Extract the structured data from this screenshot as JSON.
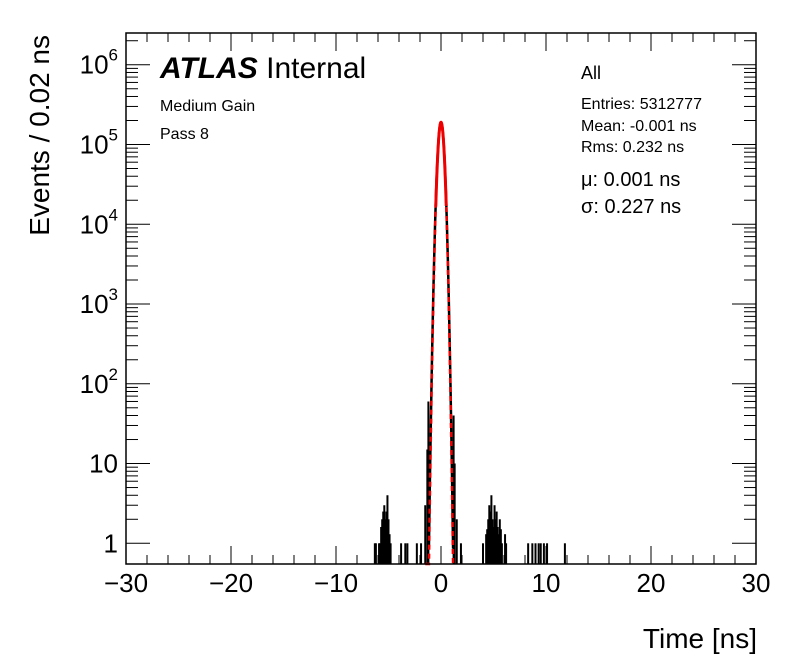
{
  "labels": {
    "experiment": "ATLAS",
    "status": "Internal",
    "gain": "Medium Gain",
    "pass": "Pass 8",
    "selection": "All",
    "entries": "Entries: 5312777",
    "mean": "Mean: -0.001 ns",
    "rms": "Rms: 0.232 ns",
    "fit_mu": "μ: 0.001 ns",
    "fit_sigma": "σ: 0.227 ns"
  },
  "chart_data": {
    "type": "histogram",
    "xlabel": "Time [ns]",
    "ylabel": "Events / 0.02 ns",
    "xlim": [
      -30,
      30
    ],
    "ylim": [
      0.55,
      2500000
    ],
    "yscale": "log",
    "x_ticks": [
      -30,
      -20,
      -10,
      0,
      10,
      20,
      30
    ],
    "x_tick_labels": [
      "−30",
      "−20",
      "−10",
      "0",
      "10",
      "20",
      "30"
    ],
    "y_ticks": [
      1,
      10,
      100,
      1000,
      10000,
      100000,
      1000000
    ],
    "y_tick_labels": [
      "1",
      "10",
      "10^2",
      "10^3",
      "10^4",
      "10^5",
      "10^6"
    ],
    "bin_width": 0.02,
    "series": [
      {
        "kind": "data",
        "color": "#000000",
        "bins": [
          {
            "x": -6.3,
            "y": 1
          },
          {
            "x": -6.2,
            "y": 1
          },
          {
            "x": -5.9,
            "y": 1
          },
          {
            "x": -5.8,
            "y": 1
          },
          {
            "x": -5.7,
            "y": 1.6
          },
          {
            "x": -5.6,
            "y": 2
          },
          {
            "x": -5.5,
            "y": 2.5
          },
          {
            "x": -5.4,
            "y": 3
          },
          {
            "x": -5.3,
            "y": 2
          },
          {
            "x": -5.2,
            "y": 2.5
          },
          {
            "x": -5.1,
            "y": 4
          },
          {
            "x": -5.0,
            "y": 2
          },
          {
            "x": -4.9,
            "y": 1.3
          },
          {
            "x": -4.8,
            "y": 1
          },
          {
            "x": -3.8,
            "y": 1
          },
          {
            "x": -3.4,
            "y": 1
          },
          {
            "x": -3.2,
            "y": 1
          },
          {
            "x": -2.3,
            "y": 1
          },
          {
            "x": -1.9,
            "y": 1
          },
          {
            "x": -1.5,
            "y": 3
          },
          {
            "x": -1.3,
            "y": 15
          },
          {
            "x": -1.2,
            "y": 60
          },
          {
            "x": 1.2,
            "y": 40
          },
          {
            "x": 1.3,
            "y": 10
          },
          {
            "x": 1.5,
            "y": 2
          },
          {
            "x": 1.9,
            "y": 1
          },
          {
            "x": 4.0,
            "y": 1
          },
          {
            "x": 4.3,
            "y": 1.3
          },
          {
            "x": 4.4,
            "y": 1.5
          },
          {
            "x": 4.5,
            "y": 2
          },
          {
            "x": 4.6,
            "y": 3
          },
          {
            "x": 4.7,
            "y": 2.5
          },
          {
            "x": 4.8,
            "y": 4
          },
          {
            "x": 4.9,
            "y": 2
          },
          {
            "x": 5.0,
            "y": 1.6
          },
          {
            "x": 5.1,
            "y": 3
          },
          {
            "x": 5.2,
            "y": 2
          },
          {
            "x": 5.3,
            "y": 2.5
          },
          {
            "x": 5.4,
            "y": 1.6
          },
          {
            "x": 5.5,
            "y": 1.3
          },
          {
            "x": 5.6,
            "y": 2
          },
          {
            "x": 5.7,
            "y": 1.5
          },
          {
            "x": 5.8,
            "y": 1
          },
          {
            "x": 6.1,
            "y": 1.3
          },
          {
            "x": 6.2,
            "y": 1
          },
          {
            "x": 8.3,
            "y": 1
          },
          {
            "x": 8.7,
            "y": 1
          },
          {
            "x": 9.0,
            "y": 1
          },
          {
            "x": 9.3,
            "y": 1
          },
          {
            "x": 9.5,
            "y": 1
          },
          {
            "x": 9.8,
            "y": 1
          },
          {
            "x": 10.1,
            "y": 1
          },
          {
            "x": 11.8,
            "y": 1
          }
        ],
        "core": {
          "peak": 190000,
          "mean": -0.001,
          "sigma": 0.232,
          "x_range": [
            -1.15,
            1.15
          ]
        }
      },
      {
        "kind": "gaussian_fit",
        "color": "#ee0000",
        "peak": 190000,
        "mu": 0.001,
        "sigma": 0.227,
        "solid_range": [
          -0.5,
          0.5
        ],
        "dashed_range": [
          -1.5,
          1.2
        ]
      }
    ]
  }
}
